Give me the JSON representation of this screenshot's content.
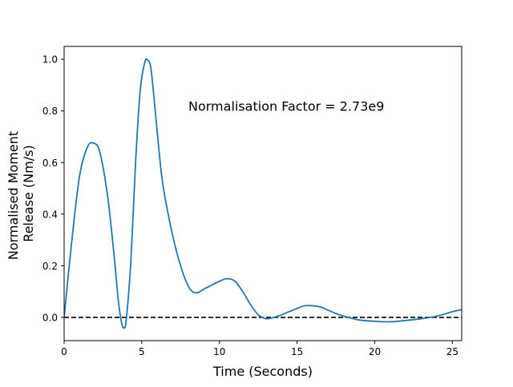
{
  "chart_data": {
    "type": "line",
    "xlabel": "Time (Seconds)",
    "ylabel_lines": [
      "Normalised Moment",
      "Release (Nm/s)"
    ],
    "annotation": "Normalisation Factor = 2.73e9",
    "xlim": [
      0,
      25.6
    ],
    "ylim": [
      -0.09,
      1.05
    ],
    "x_ticks": [
      0,
      5,
      10,
      15,
      20,
      25
    ],
    "y_ticks": [
      0.0,
      0.2,
      0.4,
      0.6,
      0.8,
      1.0
    ],
    "x_tick_labels": [
      "0",
      "5",
      "10",
      "15",
      "20",
      "25"
    ],
    "y_tick_labels": [
      "0.0",
      "0.2",
      "0.4",
      "0.6",
      "0.8",
      "1.0"
    ],
    "grid": false,
    "reference_line": {
      "y": 0.0,
      "style": "dashed",
      "color": "#000000"
    },
    "series": [
      {
        "color": "#1f77b4",
        "x": [
          0,
          0.5,
          1.0,
          1.5,
          1.9,
          2.3,
          2.8,
          3.2,
          3.5,
          3.7,
          3.85,
          4.0,
          4.3,
          4.6,
          4.9,
          5.2,
          5.4,
          5.6,
          5.9,
          6.3,
          6.8,
          7.4,
          8.0,
          8.5,
          9.0,
          9.5,
          10.0,
          10.5,
          11.0,
          11.5,
          12.0,
          12.5,
          13.0,
          13.5,
          14.0,
          15.0,
          15.5,
          16.0,
          16.5,
          17.0,
          17.5,
          18.0,
          19.0,
          20.0,
          21.0,
          22.0,
          23.0,
          24.0,
          25.0,
          25.6
        ],
        "y": [
          0.0,
          0.3,
          0.55,
          0.66,
          0.675,
          0.64,
          0.47,
          0.25,
          0.06,
          -0.02,
          -0.04,
          -0.01,
          0.22,
          0.6,
          0.88,
          0.99,
          0.995,
          0.96,
          0.78,
          0.54,
          0.37,
          0.22,
          0.12,
          0.095,
          0.11,
          0.125,
          0.14,
          0.15,
          0.14,
          0.1,
          0.05,
          0.01,
          -0.005,
          0.0,
          0.01,
          0.035,
          0.045,
          0.045,
          0.04,
          0.028,
          0.015,
          0.005,
          -0.01,
          -0.015,
          -0.017,
          -0.012,
          -0.005,
          0.005,
          0.022,
          0.03
        ]
      }
    ]
  }
}
